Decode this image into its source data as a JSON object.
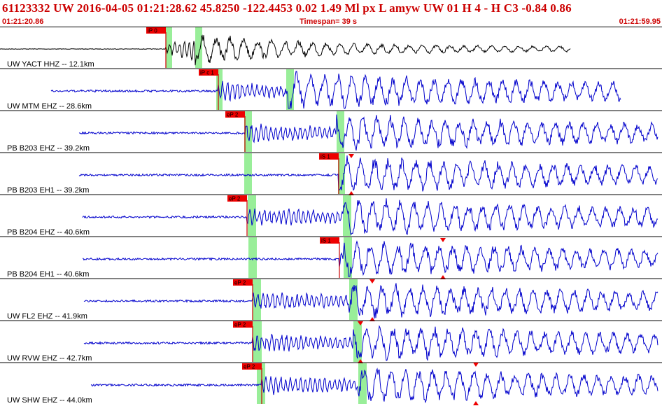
{
  "header": {
    "title": "61123332 UW 2016-04-05 01:21:28.62   45.8250 -122.4453   0.02  1.49 Ml  px  L amyw     UW 01  H   4  -  H C3   -0.84  0.86",
    "start_time": "01:21:20.86",
    "timespan": "Timespan=  39 s",
    "end_time": "01:21:59.95"
  },
  "colors": {
    "header_text": "#cc0000",
    "trace_primary": "#000000",
    "trace": "#0000cc",
    "pick_flag": "#ee0000",
    "pick_line": "#cc0000",
    "window": "#99ee99",
    "amp_marker": "#ee0000"
  },
  "traces": [
    {
      "label": "UW YACT HHZ -- 12.1km",
      "color": "black",
      "picks": [
        {
          "label": "iP 0",
          "pos": 0.251
        }
      ]
    },
    {
      "label": "UW MTM EHZ -- 28.6km",
      "picks": [
        {
          "label": "iP c 1",
          "pos": 0.33
        }
      ]
    },
    {
      "label": "PB B203 EHZ -- 39.2km",
      "picks": [
        {
          "label": "eP 2",
          "pos": 0.37
        }
      ]
    },
    {
      "label": "PB B203 EH1 -- 39.2km",
      "picks": [
        {
          "label": "iS 1",
          "pos": 0.512
        }
      ]
    },
    {
      "label": "PB B204 EHZ -- 40.6km",
      "picks": [
        {
          "label": "eP 2",
          "pos": 0.373
        }
      ]
    },
    {
      "label": "PB B204 EH1 -- 40.6km",
      "picks": [
        {
          "label": "iS 1",
          "pos": 0.513
        }
      ]
    },
    {
      "label": "UW FL2 EHZ -- 41.9km",
      "picks": [
        {
          "label": "eP 2",
          "pos": 0.382
        }
      ]
    },
    {
      "label": "UW RVW EHZ -- 42.7km",
      "picks": [
        {
          "label": "eP 2",
          "pos": 0.382
        }
      ]
    },
    {
      "label": "UW SHW EHZ -- 44.0km",
      "picks": [
        {
          "label": "eP 2",
          "pos": 0.395
        }
      ]
    }
  ]
}
